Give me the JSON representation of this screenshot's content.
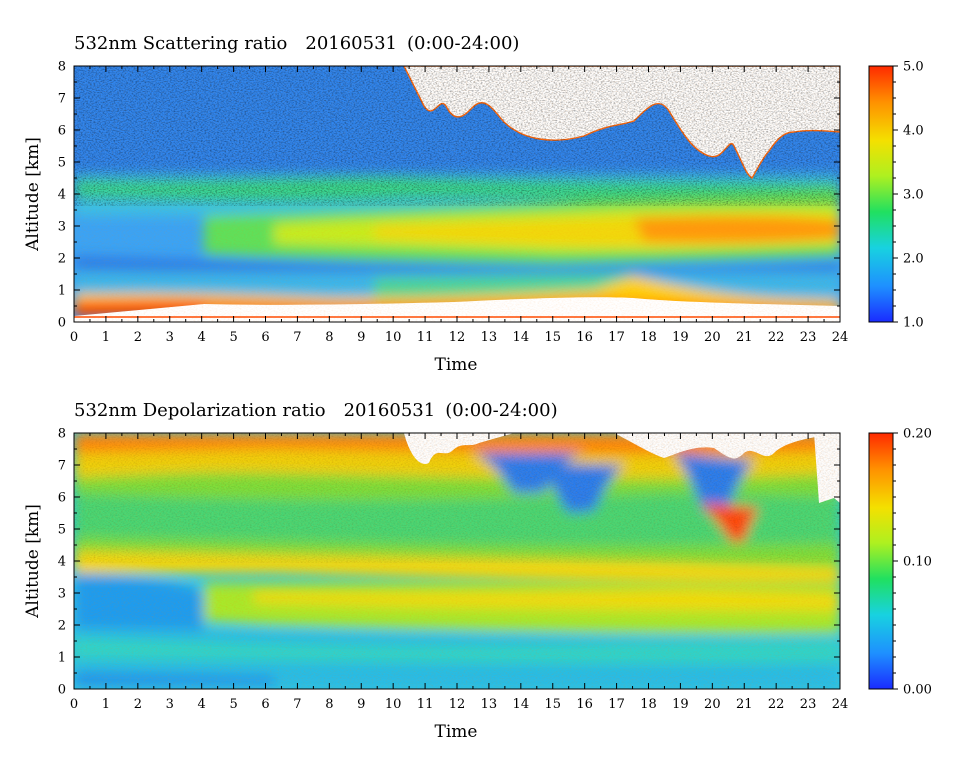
{
  "chart_data": [
    {
      "type": "heatmap",
      "title": "532nm Scattering ratio",
      "date": "20160531",
      "time_range": "(0:00-24:00)",
      "xlabel": "Time",
      "ylabel": "Altitude [km]",
      "xlim": [
        0,
        24
      ],
      "ylim": [
        0,
        8
      ],
      "x_ticks": [
        "0",
        "1",
        "2",
        "3",
        "4",
        "5",
        "6",
        "7",
        "8",
        "9",
        "10",
        "11",
        "12",
        "13",
        "14",
        "15",
        "16",
        "17",
        "18",
        "19",
        "20",
        "21",
        "22",
        "23",
        "24"
      ],
      "y_ticks": [
        "0",
        "1",
        "2",
        "3",
        "4",
        "5",
        "6",
        "7",
        "8"
      ],
      "colorbar": {
        "range": [
          1.0,
          5.0
        ],
        "ticks": [
          "1.0",
          "2.0",
          "3.0",
          "4.0",
          "5.0"
        ]
      },
      "no_data_color": "#ffffff",
      "colormap": [
        "#1a2bff",
        "#1e90ff",
        "#18d2e0",
        "#20e060",
        "#aef020",
        "#f4e000",
        "#ff9000",
        "#ff2a00"
      ],
      "features": {
        "surface_layer_top_km": 0.6,
        "aerosol_layer_km": [
          2.0,
          3.5
        ],
        "aerosol_layer_peak": 4.0,
        "clouds_above_km": 5.5,
        "cloud_period_hours": [
          10,
          24
        ]
      }
    },
    {
      "type": "heatmap",
      "title": "532nm Depolarization ratio",
      "date": "20160531",
      "time_range": "(0:00-24:00)",
      "xlabel": "Time",
      "ylabel": "Altitude [km]",
      "xlim": [
        0,
        24
      ],
      "ylim": [
        0,
        8
      ],
      "x_ticks": [
        "0",
        "1",
        "2",
        "3",
        "4",
        "5",
        "6",
        "7",
        "8",
        "9",
        "10",
        "11",
        "12",
        "13",
        "14",
        "15",
        "16",
        "17",
        "18",
        "19",
        "20",
        "21",
        "22",
        "23",
        "24"
      ],
      "y_ticks": [
        "0",
        "1",
        "2",
        "3",
        "4",
        "5",
        "6",
        "7",
        "8"
      ],
      "colorbar": {
        "range": [
          0.0,
          0.2
        ],
        "ticks": [
          "0.00",
          "0.10",
          "0.20"
        ]
      },
      "no_data_color": "#ffffff",
      "colormap": [
        "#1a2bff",
        "#1e90ff",
        "#18d2e0",
        "#20e060",
        "#aef020",
        "#f4e000",
        "#ff9000",
        "#ff2a00"
      ],
      "features": {
        "boundary_layer_km": [
          0,
          2.0
        ],
        "dust_layer_km": [
          2.5,
          4.3
        ],
        "high_depol_above_km": 6.5
      }
    }
  ]
}
